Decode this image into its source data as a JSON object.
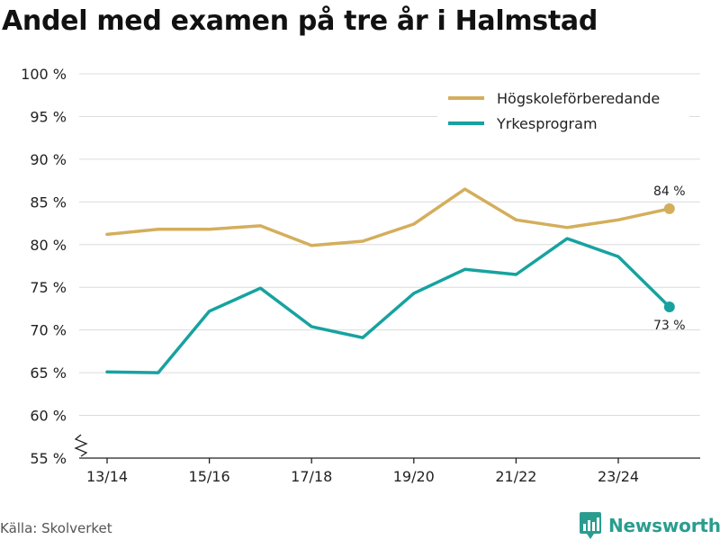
{
  "title": "Andel med examen på tre år i Halmstad",
  "source": "Källa: Skolverket",
  "brand": {
    "name": "Newsworthy",
    "color": "#2a9d8f"
  },
  "chart_data": {
    "type": "line",
    "title": "Andel med examen på tre år i Halmstad",
    "xlabel": "",
    "ylabel": "",
    "ylim": [
      55,
      100
    ],
    "y_ticks": [
      55,
      60,
      65,
      70,
      75,
      80,
      85,
      90,
      95,
      100
    ],
    "y_tick_labels": [
      "55 %",
      "60 %",
      "65 %",
      "70 %",
      "75 %",
      "80 %",
      "85 %",
      "90 %",
      "95 %",
      "100 %"
    ],
    "axis_break": true,
    "grid": true,
    "legend_position": "top-right",
    "categories": [
      "13/14",
      "14/15",
      "15/16",
      "16/17",
      "17/18",
      "18/19",
      "19/20",
      "20/21",
      "21/22",
      "22/23",
      "23/24",
      "24/25"
    ],
    "x_tick_labels": [
      "13/14",
      "15/16",
      "17/18",
      "19/20",
      "21/22",
      "23/24"
    ],
    "series": [
      {
        "name": "Högskoleförberedande",
        "color": "#d4ae5c",
        "values": [
          81.2,
          81.8,
          81.8,
          82.2,
          79.9,
          80.4,
          82.4,
          86.5,
          82.9,
          82.0,
          82.9,
          84.2
        ],
        "end_label": "84 %"
      },
      {
        "name": "Yrkesprogram",
        "color": "#17a2a0",
        "values": [
          65.1,
          65.0,
          72.2,
          74.9,
          70.4,
          69.1,
          74.3,
          77.1,
          76.5,
          80.7,
          78.6,
          72.7
        ],
        "end_label": "73 %"
      }
    ]
  }
}
